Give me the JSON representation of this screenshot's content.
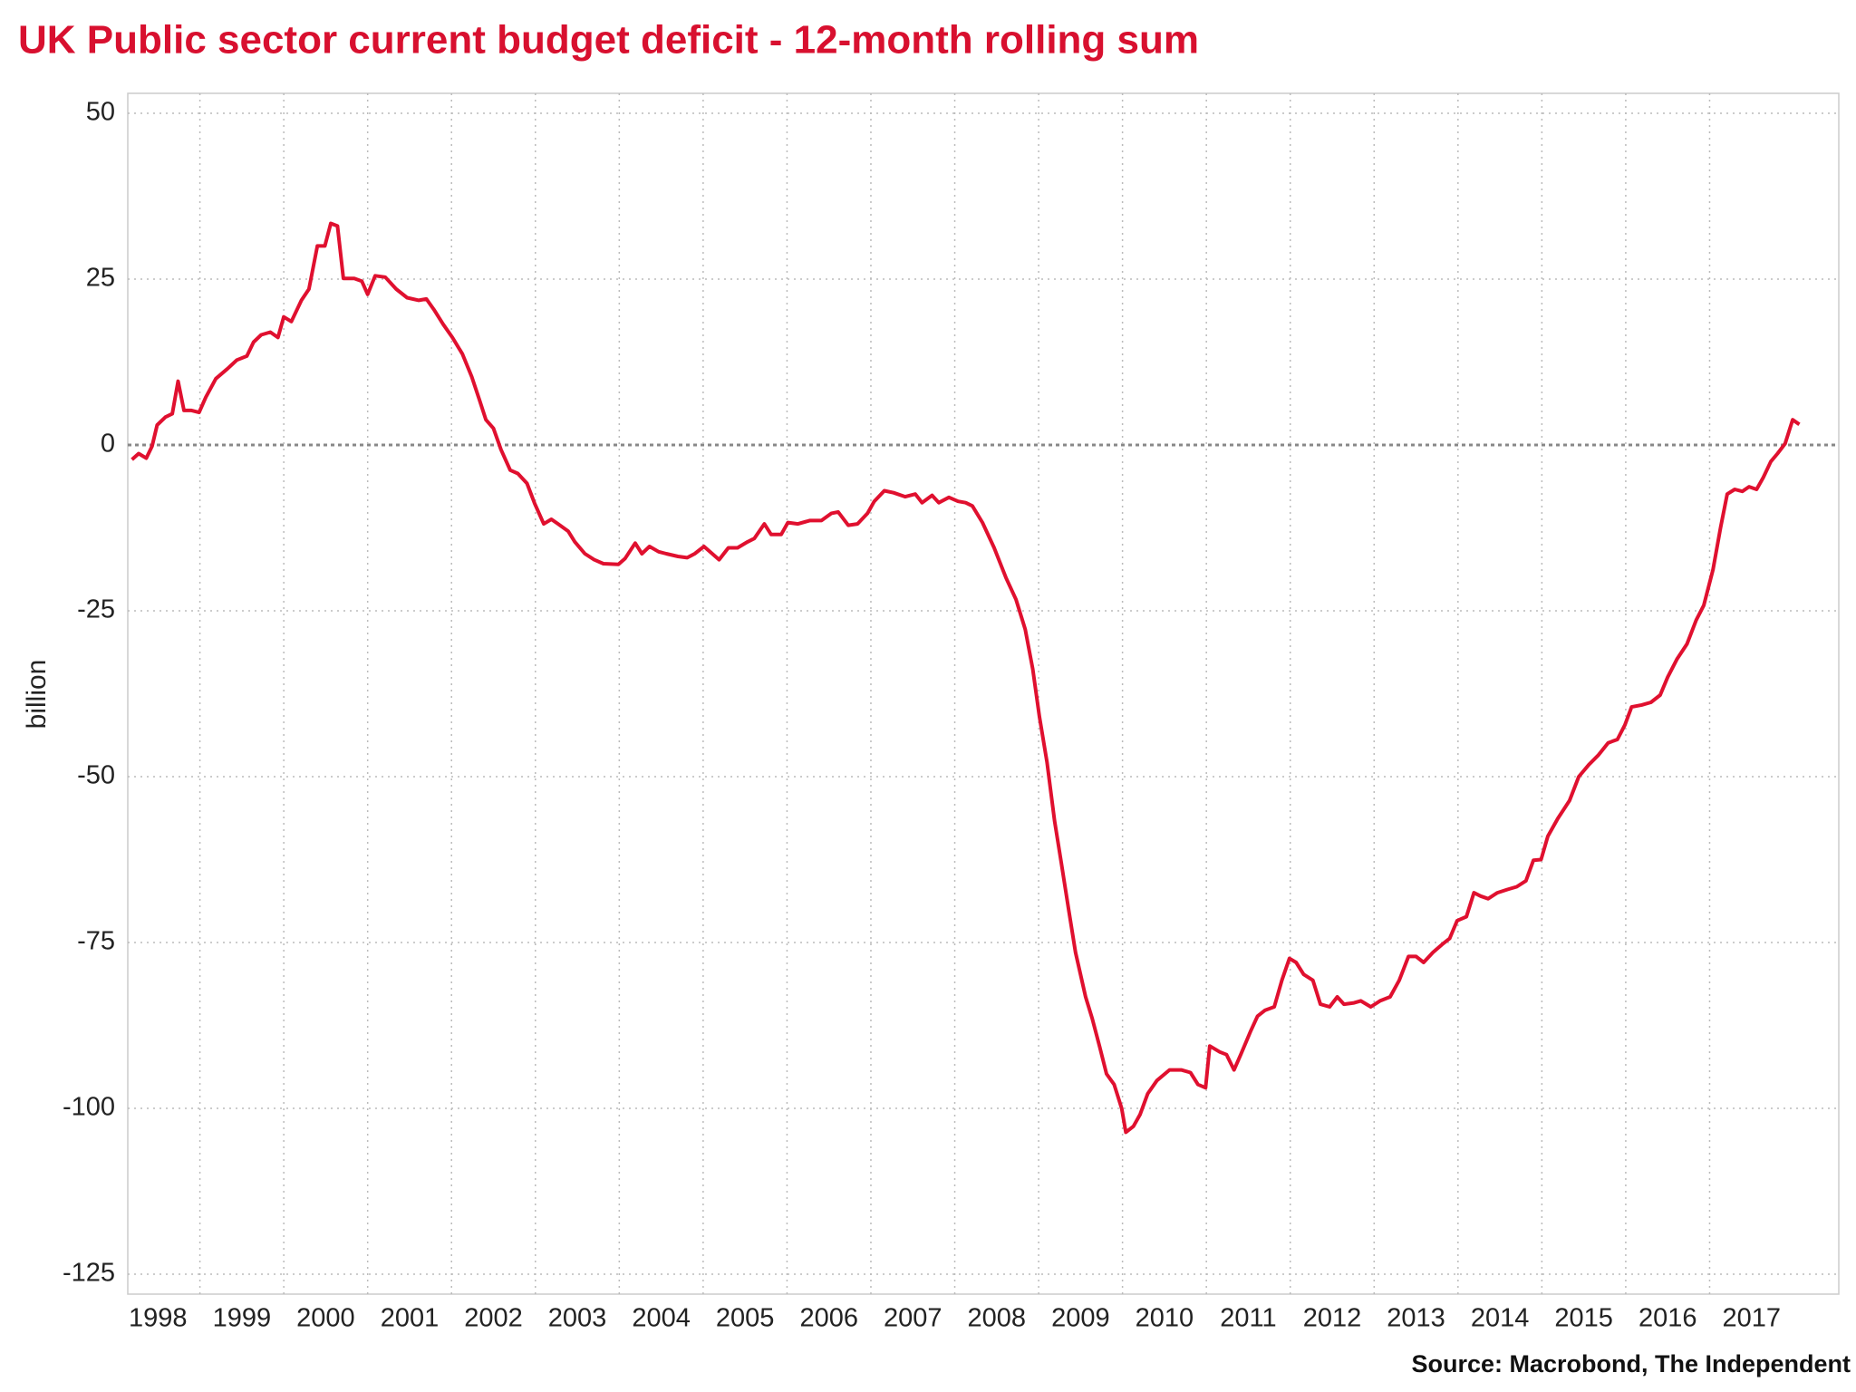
{
  "chart_data": {
    "type": "line",
    "title": "UK Public sector current budget deficit - 12-month rolling sum",
    "y_label": "billion",
    "source": "Source: Macrobond, The Independent",
    "grid": true,
    "xlim": [
      1998.14,
      2018.54
    ],
    "ylim": [
      -128,
      53
    ],
    "xticks": [
      1998,
      1999,
      2000,
      2001,
      2002,
      2003,
      2004,
      2005,
      2006,
      2007,
      2008,
      2009,
      2010,
      2011,
      2012,
      2013,
      2014,
      2015,
      2016,
      2017
    ],
    "yticks": [
      50,
      25,
      0,
      -25,
      -50,
      -75,
      -100,
      -125
    ],
    "x": [
      1998.19,
      1998.27,
      1998.36,
      1998.43,
      1998.49,
      1998.59,
      1998.67,
      1998.74,
      1998.81,
      1998.9,
      1998.99,
      1999.07,
      1999.19,
      1999.33,
      1999.44,
      1999.56,
      1999.64,
      1999.73,
      1999.84,
      1999.93,
      2000.0,
      2000.09,
      2000.21,
      2000.3,
      2000.4,
      2000.49,
      2000.56,
      2000.64,
      2000.71,
      2000.84,
      2000.93,
      2001.0,
      2001.09,
      2001.21,
      2001.34,
      2001.47,
      2001.61,
      2001.7,
      2001.79,
      2001.9,
      2002.01,
      2002.13,
      2002.24,
      2002.33,
      2002.41,
      2002.5,
      2002.59,
      2002.7,
      2002.79,
      2002.9,
      2002.99,
      2003.1,
      2003.19,
      2003.27,
      2003.39,
      2003.47,
      2003.59,
      2003.7,
      2003.81,
      2003.99,
      2004.07,
      2004.19,
      2004.27,
      2004.36,
      2004.47,
      2004.56,
      2004.7,
      2004.81,
      2004.9,
      2005.01,
      2005.19,
      2005.3,
      2005.41,
      2005.53,
      2005.61,
      2005.73,
      2005.81,
      2005.93,
      2006.01,
      2006.13,
      2006.27,
      2006.41,
      2006.53,
      2006.61,
      2006.73,
      2006.84,
      2006.96,
      2007.04,
      2007.16,
      2007.27,
      2007.41,
      2007.53,
      2007.61,
      2007.73,
      2007.81,
      2007.93,
      2008.04,
      2008.13,
      2008.21,
      2008.33,
      2008.47,
      2008.61,
      2008.73,
      2008.84,
      2008.93,
      2009.01,
      2009.1,
      2009.19,
      2009.27,
      2009.36,
      2009.44,
      2009.56,
      2009.64,
      2009.73,
      2009.81,
      2009.9,
      2009.99,
      2010.04,
      2010.13,
      2010.21,
      2010.3,
      2010.41,
      2010.56,
      2010.7,
      2010.81,
      2010.9,
      2010.99,
      2011.04,
      2011.16,
      2011.24,
      2011.33,
      2011.41,
      2011.53,
      2011.61,
      2011.7,
      2011.81,
      2011.9,
      2011.99,
      2012.07,
      2012.16,
      2012.27,
      2012.36,
      2012.47,
      2012.56,
      2012.64,
      2012.76,
      2012.84,
      2012.96,
      2013.07,
      2013.19,
      2013.3,
      2013.41,
      2013.5,
      2013.59,
      2013.7,
      2013.81,
      2013.9,
      2013.99,
      2014.1,
      2014.19,
      2014.27,
      2014.36,
      2014.47,
      2014.59,
      2014.7,
      2014.81,
      2014.9,
      2014.99,
      2015.07,
      2015.19,
      2015.33,
      2015.44,
      2015.56,
      2015.67,
      2015.79,
      2015.9,
      2015.99,
      2016.07,
      2016.19,
      2016.3,
      2016.41,
      2016.5,
      2016.61,
      2016.73,
      2016.84,
      2016.93,
      2017.04,
      2017.13,
      2017.21,
      2017.3,
      2017.39,
      2017.47,
      2017.56,
      2017.64,
      2017.73,
      2017.81,
      2017.9,
      2017.99,
      2018.07
    ],
    "series": [
      {
        "name": "UK Public sector current budget deficit",
        "color": "#e0102f",
        "values": [
          -2.2,
          -1.3,
          -2,
          -0.2,
          3,
          4.2,
          4.7,
          9.6,
          5.2,
          5.2,
          4.9,
          7.2,
          10,
          11.5,
          12.8,
          13.4,
          15.5,
          16.6,
          17,
          16.2,
          19.3,
          18.6,
          21.8,
          23.5,
          30,
          30,
          33.4,
          33,
          25.1,
          25.1,
          24.7,
          22.7,
          25.5,
          25.3,
          23.5,
          22.2,
          21.8,
          22,
          20.4,
          18.2,
          16.2,
          13.7,
          10.3,
          6.9,
          3.8,
          2.5,
          -0.7,
          -3.8,
          -4.3,
          -5.8,
          -8.8,
          -11.9,
          -11.2,
          -11.9,
          -13,
          -14.6,
          -16.4,
          -17.3,
          -17.9,
          -18,
          -17.1,
          -14.8,
          -16.4,
          -15.3,
          -16.1,
          -16.4,
          -16.8,
          -17,
          -16.4,
          -15.3,
          -17.3,
          -15.5,
          -15.5,
          -14.6,
          -14.1,
          -11.9,
          -13.5,
          -13.5,
          -11.7,
          -11.9,
          -11.4,
          -11.4,
          -10.3,
          -10.1,
          -12.1,
          -11.9,
          -10.3,
          -8.5,
          -6.9,
          -7.2,
          -7.8,
          -7.4,
          -8.7,
          -7.6,
          -8.7,
          -7.9,
          -8.5,
          -8.7,
          -9.2,
          -11.7,
          -15.5,
          -20,
          -23.3,
          -27.8,
          -33.8,
          -41,
          -47.8,
          -56.7,
          -63,
          -70.2,
          -76.5,
          -83.2,
          -86.5,
          -90.8,
          -94.8,
          -96.4,
          -100,
          -103.6,
          -102.7,
          -100.9,
          -97.8,
          -95.8,
          -94.2,
          -94.2,
          -94.6,
          -96.4,
          -96.9,
          -90.6,
          -91.5,
          -91.9,
          -94.2,
          -91.9,
          -88.3,
          -86.1,
          -85.2,
          -84.7,
          -80.7,
          -77.4,
          -78,
          -79.8,
          -80.7,
          -84.3,
          -84.7,
          -83.2,
          -84.3,
          -84.1,
          -83.8,
          -84.7,
          -83.8,
          -83.2,
          -80.7,
          -77.1,
          -77.1,
          -78,
          -76.5,
          -75.3,
          -74.4,
          -71.7,
          -71.1,
          -67.5,
          -68,
          -68.4,
          -67.5,
          -67,
          -66.6,
          -65.7,
          -62.6,
          -62.5,
          -59,
          -56.3,
          -53.6,
          -50,
          -48.2,
          -46.8,
          -44.9,
          -44.4,
          -42.2,
          -39.5,
          -39.2,
          -38.8,
          -37.7,
          -35,
          -32.3,
          -30,
          -26.4,
          -24.2,
          -18.8,
          -12.5,
          -7.4,
          -6.7,
          -7,
          -6.3,
          -6.7,
          -4.9,
          -2.5,
          -1.3,
          0.2,
          3.8,
          3.1
        ]
      }
    ]
  }
}
